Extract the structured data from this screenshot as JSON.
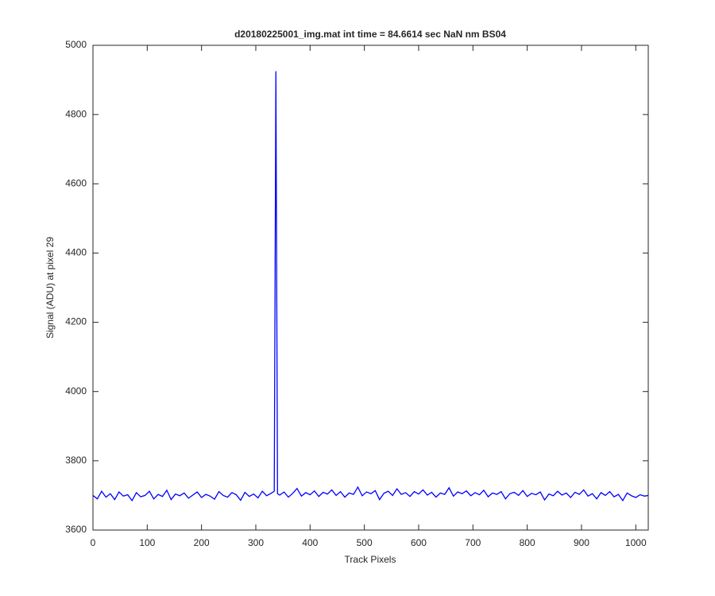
{
  "chart_data": {
    "type": "line",
    "title": "d20180225001_img.mat int time = 84.6614 sec  NaN nm BS04",
    "xlabel": "Track Pixels",
    "ylabel": "Signal (ADU) at pixel 29",
    "x": [
      0,
      8,
      16,
      24,
      32,
      40,
      48,
      56,
      64,
      72,
      80,
      88,
      96,
      104,
      112,
      120,
      128,
      136,
      144,
      152,
      160,
      168,
      176,
      184,
      192,
      200,
      208,
      216,
      224,
      232,
      240,
      248,
      256,
      264,
      272,
      280,
      288,
      296,
      304,
      312,
      320,
      328,
      334,
      337,
      340,
      344,
      352,
      360,
      368,
      376,
      384,
      392,
      400,
      408,
      416,
      424,
      432,
      440,
      448,
      456,
      464,
      472,
      480,
      488,
      496,
      504,
      512,
      520,
      528,
      536,
      544,
      552,
      560,
      568,
      576,
      584,
      592,
      600,
      608,
      616,
      624,
      632,
      640,
      648,
      656,
      664,
      672,
      680,
      688,
      696,
      704,
      712,
      720,
      728,
      736,
      744,
      752,
      760,
      768,
      776,
      784,
      792,
      800,
      808,
      816,
      824,
      832,
      840,
      848,
      856,
      864,
      872,
      880,
      888,
      896,
      904,
      912,
      920,
      928,
      936,
      944,
      952,
      960,
      968,
      976,
      984,
      992,
      1000,
      1008,
      1016,
      1023
    ],
    "series": [
      {
        "name": "signal",
        "color": "#0000ff",
        "values": [
          3700,
          3690,
          3712,
          3695,
          3705,
          3688,
          3710,
          3698,
          3702,
          3685,
          3708,
          3696,
          3700,
          3712,
          3690,
          3703,
          3697,
          3715,
          3688,
          3704,
          3699,
          3707,
          3692,
          3701,
          3710,
          3694,
          3703,
          3698,
          3689,
          3711,
          3700,
          3695,
          3708,
          3702,
          3686,
          3709,
          3697,
          3704,
          3693,
          3712,
          3699,
          3706,
          3712,
          4925,
          3705,
          3701,
          3710,
          3695,
          3706,
          3720,
          3698,
          3708,
          3702,
          3713,
          3697,
          3709,
          3704,
          3716,
          3700,
          3711,
          3695,
          3707,
          3703,
          3724,
          3699,
          3710,
          3705,
          3714,
          3688,
          3706,
          3712,
          3700,
          3719,
          3703,
          3708,
          3697,
          3711,
          3704,
          3716,
          3701,
          3709,
          3695,
          3707,
          3703,
          3722,
          3698,
          3710,
          3705,
          3713,
          3699,
          3708,
          3702,
          3715,
          3696,
          3707,
          3703,
          3711,
          3690,
          3705,
          3709,
          3700,
          3714,
          3697,
          3706,
          3702,
          3710,
          3687,
          3704,
          3699,
          3712,
          3701,
          3707,
          3694,
          3709,
          3703,
          3716,
          3698,
          3705,
          3690,
          3708,
          3700,
          3711,
          3696,
          3703,
          3685,
          3707,
          3699,
          3694,
          3702,
          3698,
          3700
        ]
      }
    ],
    "xlim": [
      0,
      1023
    ],
    "ylim": [
      3600,
      5000
    ],
    "xticks": [
      0,
      100,
      200,
      300,
      400,
      500,
      600,
      700,
      800,
      900,
      1000
    ],
    "yticks": [
      3600,
      3800,
      4000,
      4200,
      4400,
      4600,
      4800,
      5000
    ],
    "grid": false
  }
}
